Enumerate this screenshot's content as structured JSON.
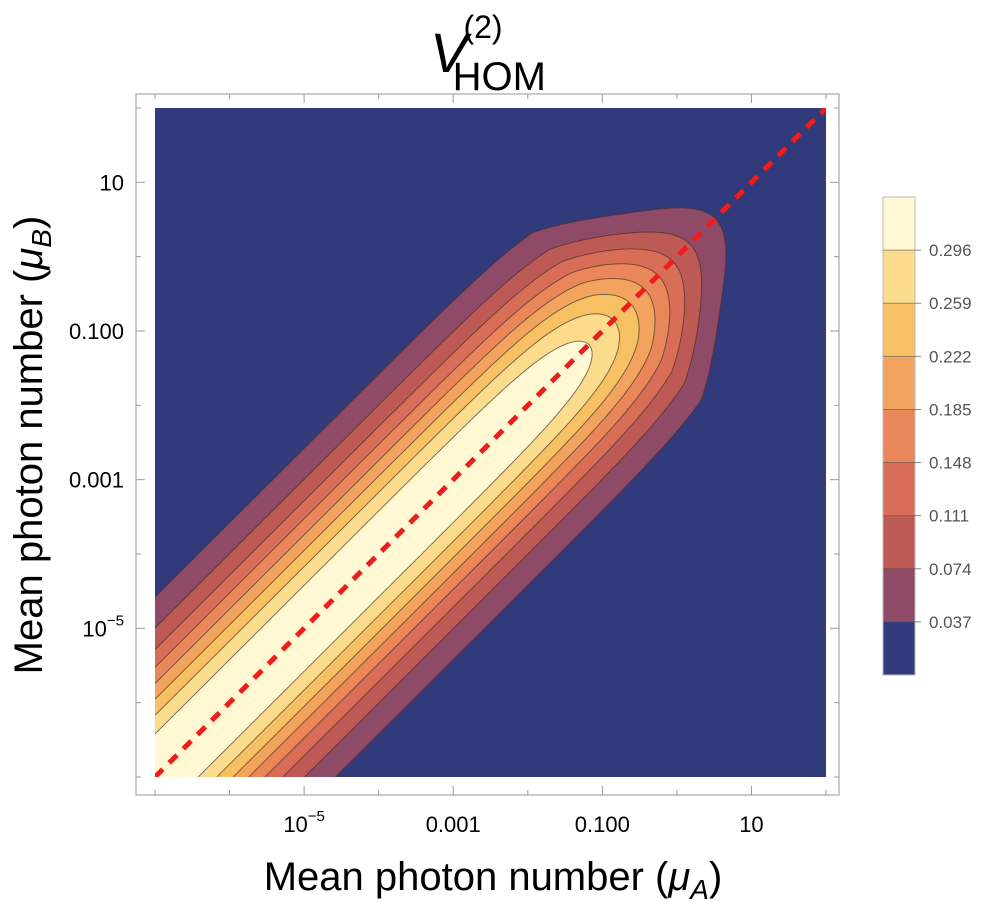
{
  "chart_data": {
    "type": "heatmap",
    "subtype": "contour",
    "title": {
      "symbol": "V",
      "superscript": "(2)",
      "subscript": "HOM"
    },
    "xlabel": "Mean photon number (μA)",
    "ylabel": "Mean photon number (μB)",
    "xlabel_parts": {
      "prefix": "Mean photon number (",
      "symbol": "μ",
      "sub": "A",
      "suffix": ")"
    },
    "ylabel_parts": {
      "prefix": "Mean photon number (",
      "symbol": "μ",
      "sub": "B",
      "suffix": ")"
    },
    "x_scale": "log",
    "y_scale": "log",
    "xlim": [
      1e-07,
      100
    ],
    "ylim": [
      1e-07,
      100
    ],
    "x_ticks": [
      {
        "value": 1e-05,
        "base": "10",
        "exp": "−5",
        "label": ""
      },
      {
        "value": 0.001,
        "label": "0.001"
      },
      {
        "value": 0.1,
        "label": "0.100"
      },
      {
        "value": 10,
        "label": "10"
      }
    ],
    "y_ticks": [
      {
        "value": 1e-05,
        "base": "10",
        "exp": "−5",
        "label": ""
      },
      {
        "value": 0.001,
        "label": "0.001"
      },
      {
        "value": 0.1,
        "label": "0.100"
      },
      {
        "value": 10,
        "label": "10"
      }
    ],
    "contour_levels": [
      0.037,
      0.074,
      0.111,
      0.148,
      0.185,
      0.222,
      0.259,
      0.296
    ],
    "level_labels": [
      "0.037",
      "0.074",
      "0.111",
      "0.148",
      "0.185",
      "0.222",
      "0.259",
      "0.296"
    ],
    "colors": [
      "#313a7b",
      "#8e4a66",
      "#bd5a55",
      "#d86e57",
      "#ea875a",
      "#f2a45e",
      "#f7c063",
      "#fbdc8c",
      "#fff8d2"
    ],
    "max_value": 0.33,
    "reference_line": {
      "style": "dashed",
      "color": "#ee1c1c",
      "description": "μA = μB"
    },
    "legend_position": "right"
  }
}
